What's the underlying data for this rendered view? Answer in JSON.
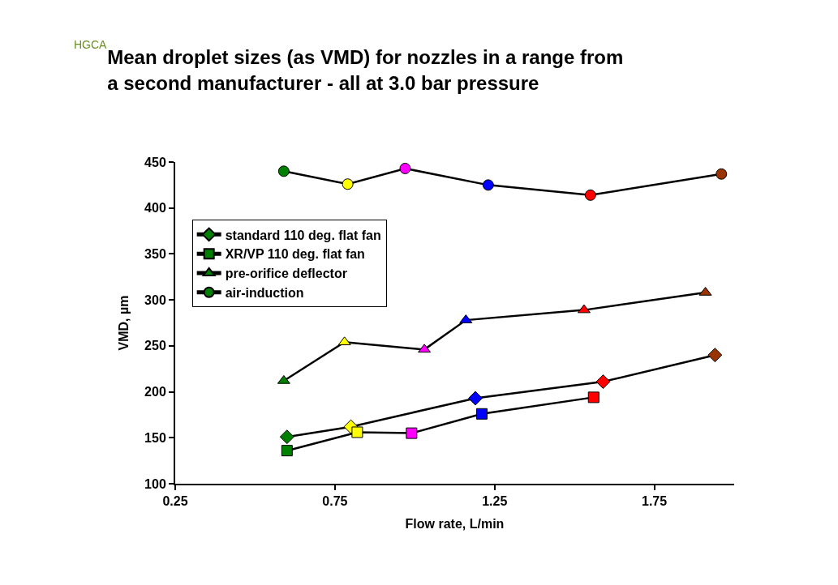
{
  "chart_data": {
    "type": "line",
    "title": "Mean droplet sizes (as VMD) for nozzles in a range from\na second manufacturer - all at 3.0 bar pressure",
    "annotations": [
      "HGCA"
    ],
    "xlabel": "Flow rate, L/min",
    "ylabel": "VMD, µm",
    "xlim": [
      0.25,
      2.0
    ],
    "xticks": [
      0.25,
      0.75,
      1.25,
      1.75
    ],
    "ylim": [
      100,
      450
    ],
    "yticks": [
      100,
      150,
      200,
      250,
      300,
      350,
      400,
      450
    ],
    "legend": "top left",
    "line_style": "solid",
    "series": [
      {
        "name": "standard 110 deg. flat fan",
        "marker": "diamond",
        "color": "#000000",
        "x": [
          0.6,
          0.8,
          1.19,
          1.59,
          1.94
        ],
        "values": [
          151,
          162,
          193,
          211,
          240
        ],
        "colors": [
          "#008000",
          "#ffff00",
          "#0000ff",
          "#ff0000",
          "#993300"
        ]
      },
      {
        "name": "XR/VP 110 deg. flat fan",
        "marker": "square",
        "color": "#000000",
        "x": [
          0.6,
          0.82,
          0.99,
          1.21,
          1.56
        ],
        "values": [
          136,
          156,
          155,
          176,
          194
        ],
        "colors": [
          "#008000",
          "#ffff00",
          "#ff00ff",
          "#0000ff",
          "#ff0000"
        ]
      },
      {
        "name": "pre-orifice deflector",
        "marker": "triangle",
        "color": "#000000",
        "x": [
          0.59,
          0.78,
          1.03,
          1.16,
          1.53,
          1.91
        ],
        "values": [
          212,
          254,
          246,
          278,
          289,
          308
        ],
        "colors": [
          "#008000",
          "#ffff00",
          "#ff00ff",
          "#0000ff",
          "#ff0000",
          "#993300"
        ]
      },
      {
        "name": "air-induction",
        "marker": "circle",
        "color": "#000000",
        "x": [
          0.59,
          0.79,
          0.97,
          1.23,
          1.55,
          1.96
        ],
        "values": [
          440,
          426,
          443,
          425,
          414,
          437
        ],
        "colors": [
          "#008000",
          "#ffff00",
          "#ff00ff",
          "#0000ff",
          "#ff0000",
          "#993300"
        ]
      }
    ]
  }
}
